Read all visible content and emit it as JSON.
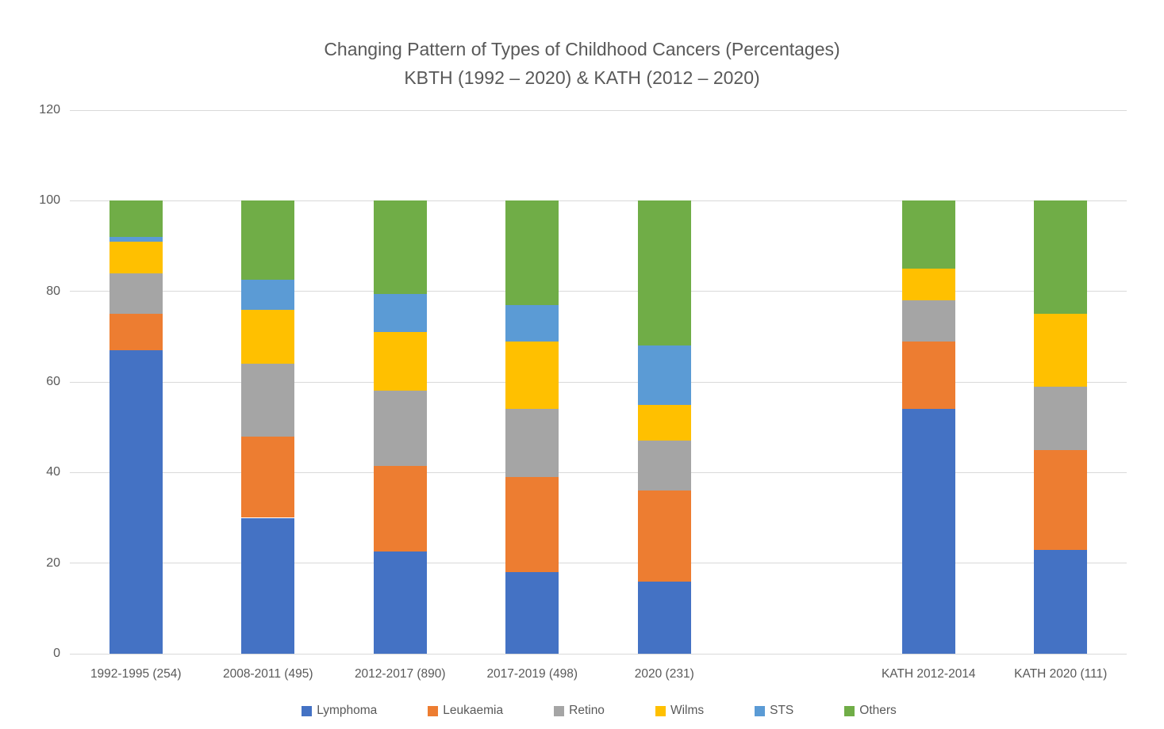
{
  "title": {
    "line1": "Changing Pattern of Types of Childhood Cancers (Percentages)",
    "line2": "KBTH (1992 – 2020) & KATH (2012 – 2020)"
  },
  "style_colors": {
    "text": "#595959",
    "gridline": "#d9d9d9",
    "background": "#ffffff"
  },
  "chart_data": {
    "type": "bar",
    "stacked": true,
    "title": "Changing Pattern of Types of Childhood Cancers (Percentages) KBTH (1992 – 2020) & KATH (2012 – 2020)",
    "xlabel": "",
    "ylabel": "",
    "ylim": [
      0,
      120
    ],
    "yticks": [
      0,
      20,
      40,
      60,
      80,
      100,
      120
    ],
    "grid": true,
    "legend_position": "bottom",
    "categories": [
      "1992-1995 (254)",
      "2008-2011 (495)",
      "2012-2017 (890)",
      "2017-2019 (498)",
      "2020 (231)",
      "",
      "KATH 2012-2014",
      "KATH 2020 (111)"
    ],
    "series": [
      {
        "name": "Lymphoma",
        "color": "#4472c4",
        "values": [
          67,
          30,
          22.5,
          18,
          16,
          0,
          54,
          23
        ]
      },
      {
        "name": "Leukaemia",
        "color": "#ed7d31",
        "values": [
          8,
          18,
          19,
          21,
          20,
          0,
          15,
          22
        ]
      },
      {
        "name": "Retino",
        "color": "#a5a5a5",
        "values": [
          9,
          16,
          16.5,
          15,
          11,
          0,
          9,
          14
        ]
      },
      {
        "name": "Wilms",
        "color": "#ffc000",
        "values": [
          7,
          12,
          13,
          15,
          8,
          0,
          7,
          16
        ]
      },
      {
        "name": "STS",
        "color": "#5b9bd5",
        "values": [
          1,
          6.5,
          8.5,
          8,
          13,
          0,
          0,
          0
        ]
      },
      {
        "name": "Others",
        "color": "#70ad47",
        "values": [
          8,
          17.5,
          20.5,
          23,
          32,
          0,
          15,
          25
        ]
      }
    ]
  }
}
